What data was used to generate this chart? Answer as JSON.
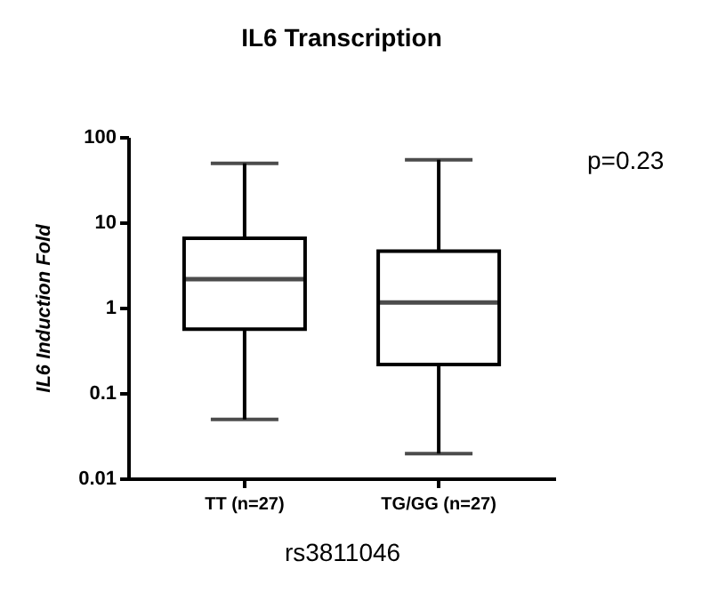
{
  "chart_data": {
    "type": "box",
    "title": "IL6 Transcription",
    "xlabel": "rs3811046",
    "ylabel": "IL6 Induction Fold",
    "categories": [
      "TT (n=27)",
      "TG/GG (n=27)"
    ],
    "boxes": [
      {
        "low": 0.049,
        "q1": 0.56,
        "median": 2.15,
        "q3": 6.5,
        "high": 49
      },
      {
        "low": 0.0195,
        "q1": 0.215,
        "median": 1.15,
        "q3": 4.6,
        "high": 54
      }
    ],
    "log": true,
    "ylim": [
      0.01,
      100
    ],
    "yticks": [
      0.01,
      0.1,
      1,
      10,
      100
    ],
    "grid": false,
    "annotations": [
      "p=0.23"
    ]
  }
}
